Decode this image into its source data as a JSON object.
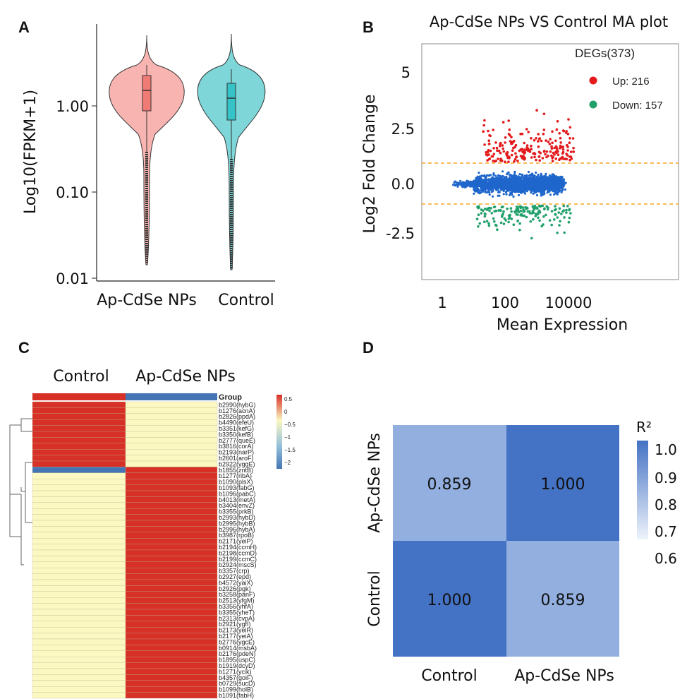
{
  "panels": {
    "a": {
      "letter": "A"
    },
    "b": {
      "letter": "B"
    },
    "c": {
      "letter": "C"
    },
    "d": {
      "letter": "D"
    }
  },
  "chart_data": [
    {
      "panel": "A",
      "type": "violin",
      "ylabel": "Log10(FPKM+1)",
      "y_scale": "log",
      "y_ticks": [
        "1.00",
        "0.10",
        "0.01"
      ],
      "categories": [
        "Ap-CdSe NPs",
        "Control"
      ],
      "colors": [
        "#f8b4b0",
        "#7ed6d8"
      ],
      "box_colors": [
        "#f07a74",
        "#35c3c8"
      ],
      "box": [
        {
          "q1": 1.0,
          "median": 1.3,
          "q3": 1.75
        },
        {
          "q1": 0.65,
          "median": 1.15,
          "q3": 1.65
        }
      ],
      "ylim": [
        0.01,
        7
      ]
    },
    {
      "panel": "B",
      "type": "scatter",
      "title": "Ap-CdSe NPs VS Control MA plot",
      "xlabel": "Mean Expression",
      "ylabel": "Log2 Fold Change",
      "x_scale": "log",
      "x_ticks": [
        "1",
        "100",
        "10000"
      ],
      "y_ticks": [
        "5",
        "2.5",
        "0.0",
        "-2.5"
      ],
      "xlim": [
        0.3,
        1000000
      ],
      "ylim": [
        -4.8,
        7
      ],
      "thresholds": [
        1,
        -1
      ],
      "threshold_color": "#f5a623",
      "legend": {
        "title": "DEGs(373)",
        "items": [
          {
            "label": "Up: 216",
            "color": "#e31a1c"
          },
          {
            "label": "Down: 157",
            "color": "#22a06b"
          }
        ]
      },
      "series": [
        {
          "name": "Up",
          "count": 216,
          "color": "#e31a1c"
        },
        {
          "name": "Down",
          "count": 157,
          "color": "#22a06b"
        },
        {
          "count": 2200,
          "color": "#1f66cc"
        }
      ]
    },
    {
      "panel": "C",
      "type": "heatmap",
      "column_labels": [
        "Control",
        "Ap-CdSe NPs"
      ],
      "group_label": "Group",
      "legend_ticks": [
        "0.5",
        "0",
        "−0.5",
        "−1",
        "−1.5",
        "−2"
      ],
      "colors": {
        "high": "#d73027",
        "mid": "#fbf8c2",
        "low": "#4575b4"
      },
      "rows": [
        "b2990(hybG)",
        "b1276(acnA)",
        "b2826(ppdA)",
        "b4490(efeU)",
        "b3351(kefG)",
        "b3350(kefB)",
        "b2777(queE)",
        "b3816(corA)",
        "b2193(narP)",
        "b2601(aroF)",
        "b2922(yggE)",
        "b1855(zntB)",
        "b1277(ribA)",
        "b1090(plsX)",
        "b1093(fabG)",
        "b1096(pabC)",
        "b4013(metA)",
        "b3404(envZ)",
        "b3355(prkB)",
        "b2993(hybD)",
        "b2995(hybB)",
        "b2996(hybA)",
        "b3987(rpoB)",
        "b2171(yeiP)",
        "b2194(ccmH)",
        "b2198(ccmD)",
        "b2199(ccmC)",
        "b2924(mscS)",
        "b3357(crp)",
        "b2927(epd)",
        "b4572(yaiX)",
        "b2926(pgk)",
        "b3258(panF)",
        "b2513(yfgM)",
        "b3356(yhfA)",
        "b3355(yheT)",
        "b2313(cvpA)",
        "b2921(ygfI)",
        "b2173(yeiR)",
        "b2177(yeiA)",
        "b2776(ygcE)",
        "b0914(msbA)",
        "b2176(pdeN)",
        "b1895(uspC)",
        "b1919(dcyD)",
        "b1271(ycik)",
        "b4357(goiF)",
        "b0729(sucD)",
        "b1099(holB)",
        "b1091(fabH)"
      ],
      "control_high_rows": 11
    },
    {
      "panel": "D",
      "type": "heatmap",
      "colorbar_label": "R²",
      "colorbar_ticks": [
        "1.0",
        "0.9",
        "0.8",
        "0.7",
        "0.6"
      ],
      "x_categories": [
        "Control",
        "Ap-CdSe NPs"
      ],
      "y_categories": [
        "Ap-CdSe NPs",
        "Control"
      ],
      "values": [
        [
          "0.859",
          "1.000"
        ],
        [
          "1.000",
          "0.859"
        ]
      ],
      "value_range": [
        0.6,
        1.0
      ],
      "colors": {
        "high": "#4472c4",
        "low": "#eef3fb"
      }
    }
  ]
}
